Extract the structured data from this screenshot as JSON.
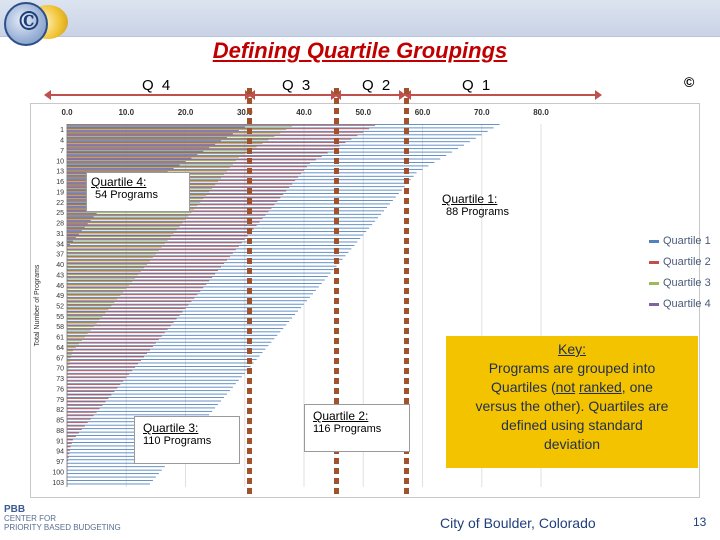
{
  "header": {
    "logo_glyph": "©",
    "title": "Defining Quartile Groupings",
    "copyright": "©"
  },
  "quartile_headers": [
    "Q 4",
    "Q 3",
    "Q 2",
    "Q 1"
  ],
  "callouts": {
    "q4": {
      "title": "Quartile 4:",
      "count": "54 Programs"
    },
    "q1": {
      "title": "Quartile 1:",
      "count": "88 Programs"
    },
    "q3": {
      "title": "Quartile 3:",
      "count": "110 Programs"
    },
    "q2": {
      "title": "Quartile 2:",
      "count": "116 Programs"
    }
  },
  "key": {
    "heading": "Key:",
    "line1": "Programs are grouped into",
    "line2_a": "Quartiles (",
    "line2_not": "not",
    "line2_ranked": "ranked",
    "line2_b": ", one",
    "line3": "versus the other). Quartiles are",
    "line4": "defined using standard",
    "line5": "deviation"
  },
  "footer": {
    "city": "City of Boulder, Colorado",
    "page": "13",
    "pbb_logo": "PBB",
    "pbb_line1": "CENTER FOR",
    "pbb_line2": "PRIORITY BASED BUDGETING"
  },
  "colors": {
    "q1": "#4f81bd",
    "q2": "#c0504d",
    "q3": "#9bbb59",
    "q4": "#8064a2",
    "accent": "#c00000"
  },
  "chart_data": {
    "type": "bar",
    "orientation": "horizontal",
    "xlim": [
      0,
      80
    ],
    "xticks": [
      "0.0",
      "10.0",
      "20.0",
      "30.0",
      "40.0",
      "50.0",
      "60.0",
      "70.0",
      "80.0"
    ],
    "ylabel": "Total Number of Programs",
    "ytick_labels": [
      "1",
      "4",
      "7",
      "10",
      "13",
      "16",
      "19",
      "22",
      "25",
      "28",
      "31",
      "34",
      "37",
      "40",
      "43",
      "46",
      "49",
      "52",
      "55",
      "58",
      "61",
      "64",
      "67",
      "70",
      "73",
      "76",
      "79",
      "82",
      "85",
      "88",
      "91",
      "94",
      "97",
      "100",
      "103"
    ],
    "legend": [
      "Quartile 1",
      "Quartile 2",
      "Quartile 3",
      "Quartile 4"
    ],
    "legend_position": "right",
    "series": [
      {
        "name": "Quartile 1",
        "values": [
          73,
          72,
          71,
          70,
          69,
          68,
          67,
          66,
          65,
          64,
          63,
          62,
          61,
          60,
          59,
          58.5,
          58,
          57.5,
          57,
          56.5,
          56,
          55.5,
          55,
          54.5,
          54,
          53.5,
          53,
          52.5,
          52,
          51.5,
          51,
          50.5,
          50,
          49.5,
          49,
          48.5,
          48,
          47.5,
          47,
          46.5,
          46,
          45.5,
          45,
          44.5,
          44,
          43.5,
          43,
          42.5,
          42,
          41.5,
          41,
          40.5,
          40,
          39.5,
          39,
          38.5,
          38,
          37.5,
          37,
          36.5,
          36,
          35.5,
          35,
          34.5,
          34,
          33.5,
          33,
          32.5,
          32,
          31.5,
          31,
          30.5,
          30,
          29.5,
          29,
          28.5,
          28,
          27.5,
          27,
          26.5,
          26,
          25.5,
          25,
          24.5,
          24,
          23.5,
          23,
          22.5,
          22,
          21.5,
          21,
          20.5,
          20,
          19.5,
          19,
          18.5,
          18,
          17.5,
          17,
          16.5,
          16,
          15.5,
          15,
          14.5,
          14
        ]
      },
      {
        "name": "Quartile 2",
        "values": [
          52,
          51,
          50,
          49,
          48,
          47,
          46,
          45,
          44,
          43,
          42,
          41,
          40.5,
          40,
          39.5,
          39,
          38.5,
          38,
          37.5,
          37,
          36.5,
          36,
          35.5,
          35,
          34.5,
          34,
          33.5,
          33,
          32.5,
          32,
          31.5,
          31,
          30.5,
          30,
          29.5,
          29,
          28.5,
          28,
          27.5,
          27,
          26.5,
          26,
          25.5,
          25,
          24.5,
          24,
          23.5,
          23,
          22.5,
          22,
          21.5,
          21,
          20.5,
          20,
          19.5,
          19,
          18.5,
          18,
          17.5,
          17,
          16.5,
          16,
          15.5,
          15,
          14.5,
          14,
          13.5,
          13,
          12.5,
          12,
          11.5,
          11,
          10.5,
          10,
          9.5,
          9,
          8.5,
          8,
          7.5,
          7,
          6.5,
          6,
          5.5,
          5,
          4.5,
          4,
          3.5,
          3,
          2.5,
          2,
          1.5,
          1,
          0.8,
          0.6,
          0.5,
          0.4,
          0.3,
          0.2,
          0.1,
          0.1,
          0,
          0,
          0,
          0,
          0
        ]
      },
      {
        "name": "Quartile 3",
        "values": [
          38,
          37,
          36,
          35,
          34,
          33,
          32,
          31,
          30,
          29,
          28.5,
          28,
          27.5,
          27,
          26.5,
          26,
          25.5,
          25,
          24.5,
          24,
          23.5,
          23,
          22.5,
          22,
          21.5,
          21,
          20.5,
          20,
          19.5,
          19,
          18.5,
          18,
          17.5,
          17,
          16.5,
          16,
          15.5,
          15,
          14.5,
          14,
          13.5,
          13,
          12.5,
          12,
          11.5,
          11,
          10.5,
          10,
          9.5,
          9,
          8.5,
          8,
          7.5,
          7,
          6.5,
          6,
          5.5,
          5,
          4.5,
          4,
          3.5,
          3,
          2.5,
          2,
          1.5,
          1,
          0.8,
          0.6,
          0.5,
          0.4,
          0.3,
          0.2,
          0.1,
          0,
          0,
          0,
          0,
          0,
          0,
          0,
          0,
          0,
          0,
          0,
          0,
          0,
          0,
          0,
          0,
          0,
          0,
          0,
          0,
          0,
          0,
          0,
          0,
          0,
          0,
          0,
          0,
          0,
          0,
          0,
          0
        ]
      },
      {
        "name": "Quartile 4",
        "values": [
          30,
          29,
          28,
          27,
          26,
          25,
          24,
          23,
          22,
          21,
          20,
          19,
          18,
          17,
          16,
          15,
          14,
          13,
          12,
          11,
          10,
          9,
          8,
          7,
          6,
          5,
          4.5,
          4,
          3.5,
          3,
          2.5,
          2,
          1.5,
          1,
          0.5,
          0,
          0,
          0,
          0,
          0,
          0,
          0,
          0,
          0,
          0,
          0,
          0,
          0,
          0,
          0,
          0,
          0,
          0,
          0,
          0,
          0,
          0,
          0,
          0,
          0,
          0,
          0,
          0,
          0,
          0,
          0,
          0,
          0,
          0,
          0,
          0,
          0,
          0,
          0,
          0,
          0,
          0,
          0,
          0,
          0,
          0,
          0,
          0,
          0,
          0,
          0,
          0,
          0,
          0,
          0,
          0,
          0,
          0,
          0,
          0,
          0,
          0,
          0,
          0,
          0,
          0,
          0,
          0,
          0,
          0
        ]
      }
    ]
  }
}
